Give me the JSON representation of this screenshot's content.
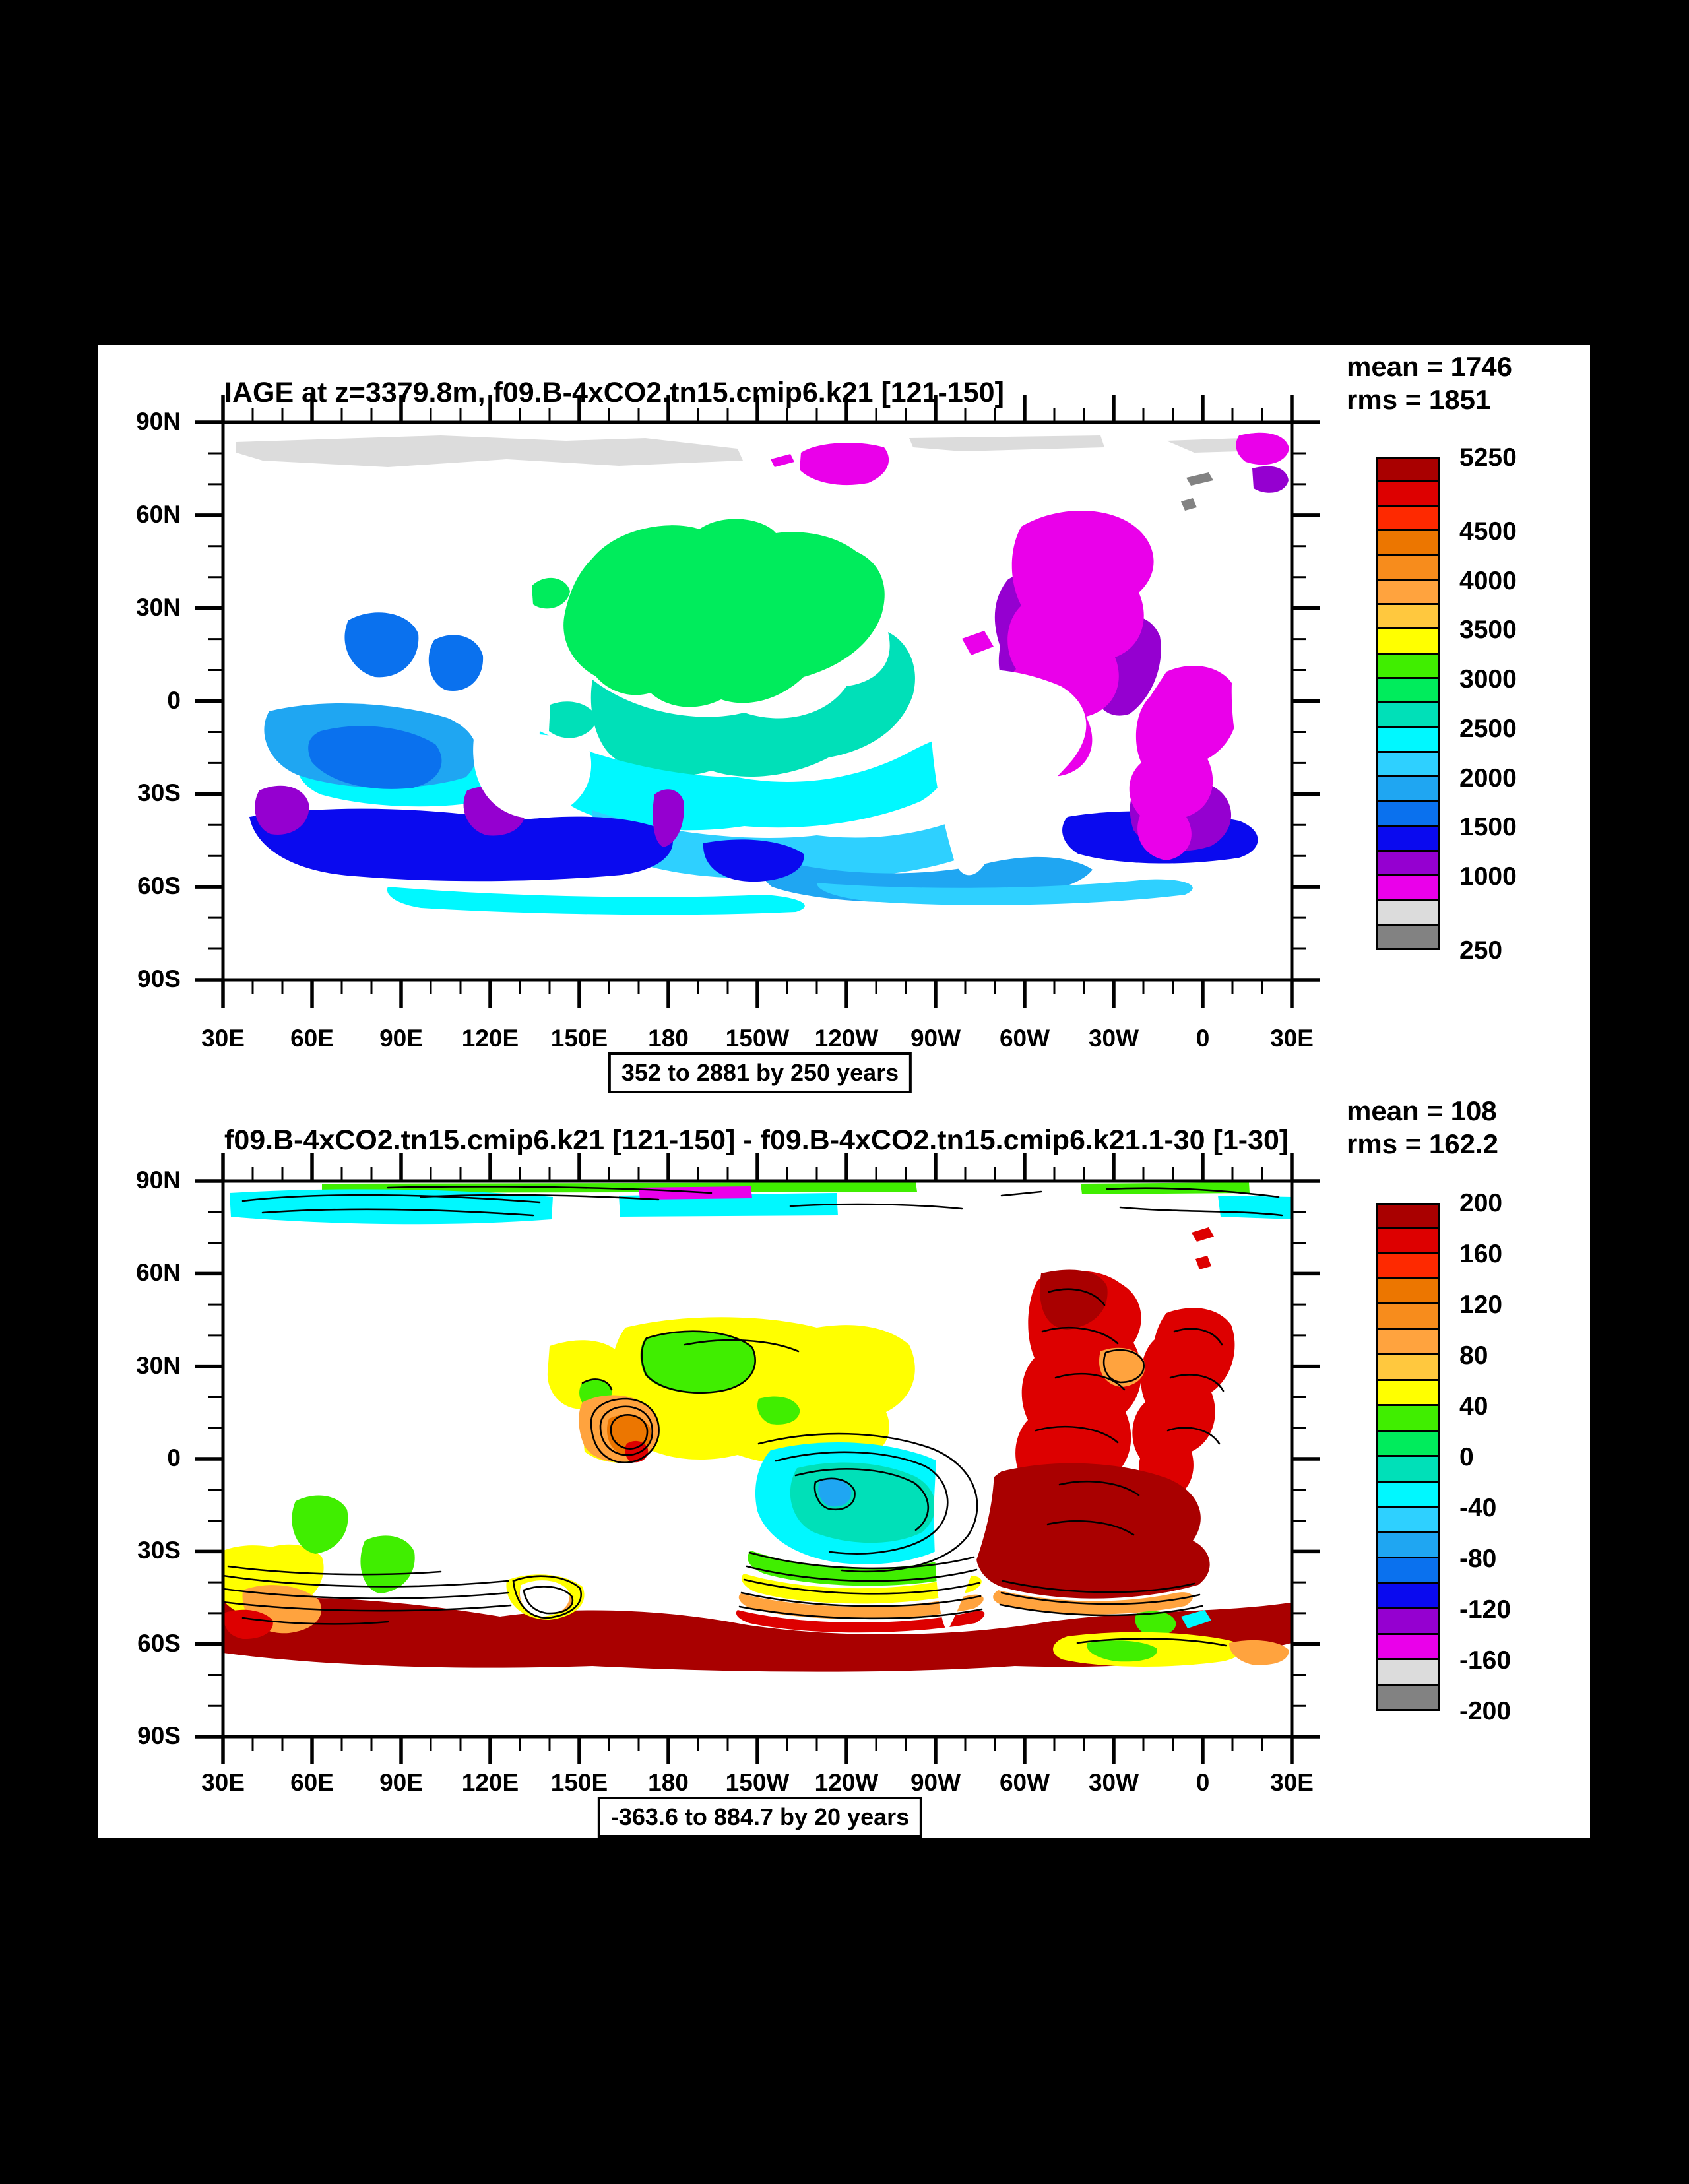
{
  "colors": {
    "background": "#000000",
    "page": "#ffffff",
    "frame": "#000000"
  },
  "palette": [
    "#a90000",
    "#dd0000",
    "#fe2900",
    "#ec7600",
    "#f78c1c",
    "#ffa33e",
    "#ffc83e",
    "#ffff00",
    "#40ee00",
    "#00ec5c",
    "#00e0b8",
    "#00f8ff",
    "#2ed0ff",
    "#1fa6f2",
    "#0a71ee",
    "#0a0aef",
    "#9500d0",
    "#ea00ea",
    "#dcdcdc",
    "#828282"
  ],
  "axes": {
    "lon_labels": [
      "30E",
      "60E",
      "90E",
      "120E",
      "150E",
      "180",
      "150W",
      "120W",
      "90W",
      "60W",
      "30W",
      "0",
      "30E"
    ],
    "lat_labels": [
      "90N",
      "60N",
      "30N",
      "0",
      "30S",
      "60S",
      "90S"
    ]
  },
  "panels": [
    {
      "title": "IAGE at z=3379.8m, f09.B-4xCO2.tn15.cmip6.k21 [121-150]",
      "stats": {
        "mean": "mean = 1746",
        "rms": "rms = 1851"
      },
      "caption": "352 to 2881 by 250 years",
      "colorbar": {
        "labels": [
          {
            "t": "5250",
            "p": 0
          },
          {
            "t": "4500",
            "p": 3
          },
          {
            "t": "4000",
            "p": 5
          },
          {
            "t": "3500",
            "p": 7
          },
          {
            "t": "3000",
            "p": 9
          },
          {
            "t": "2500",
            "p": 11
          },
          {
            "t": "2000",
            "p": 13
          },
          {
            "t": "1500",
            "p": 15
          },
          {
            "t": "1000",
            "p": 17
          },
          {
            "t": "250",
            "p": 20
          }
        ]
      }
    },
    {
      "title": "f09.B-4xCO2.tn15.cmip6.k21 [121-150] - f09.B-4xCO2.tn15.cmip6.k21.1-30 [1-30]",
      "stats": {
        "mean": "mean = 108",
        "rms": "rms = 162.2"
      },
      "caption": "-363.6 to 884.7 by 20 years",
      "colorbar": {
        "labels": [
          {
            "t": "200",
            "p": 0
          },
          {
            "t": "160",
            "p": 2
          },
          {
            "t": "120",
            "p": 4
          },
          {
            "t": "80",
            "p": 6
          },
          {
            "t": "40",
            "p": 8
          },
          {
            "t": "0",
            "p": 10
          },
          {
            "t": "-40",
            "p": 12
          },
          {
            "t": "-80",
            "p": 14
          },
          {
            "t": "-120",
            "p": 16
          },
          {
            "t": "-160",
            "p": 18
          },
          {
            "t": "-200",
            "p": 20
          }
        ]
      }
    }
  ],
  "chart_data": [
    {
      "type": "heatmap",
      "subtype": "filled-contour world map, cylindrical equidistant",
      "title": "IAGE at z=3379.8m, f09.B-4xCO2.tn15.cmip6.k21 [121-150]",
      "variable": "IAGE (ideal ocean age at 3379.8 m depth)",
      "units": "years",
      "xlabel": "longitude",
      "ylabel": "latitude",
      "x_ticks": [
        "30E",
        "60E",
        "90E",
        "120E",
        "150E",
        "180",
        "150W",
        "120W",
        "90W",
        "60W",
        "30W",
        "0",
        "30E"
      ],
      "y_ticks": [
        "90N",
        "60N",
        "30N",
        "0",
        "30S",
        "60S",
        "90S"
      ],
      "stats": {
        "mean": 1746,
        "rms": 1851
      },
      "field_range": {
        "min": 352,
        "max": 2881,
        "contour_interval": 250,
        "caption": "352 to 2881 by 250 years"
      },
      "levels": [
        250,
        500,
        750,
        1000,
        1250,
        1500,
        1750,
        2000,
        2250,
        2500,
        2750,
        3000,
        3250,
        3500,
        3750,
        4000,
        4250,
        4500,
        4750,
        5000,
        5250
      ],
      "legend_labels": [
        5250,
        4500,
        4000,
        3500,
        3000,
        2500,
        2000,
        1500,
        1000,
        250
      ],
      "legend_position": "right",
      "grid": false,
      "notes": "Oldest water (magenta/purple, 750-1250 yr colors inverted scale: magenta=1000-1250) in North/Tropical Atlantic; young gray water (250-750) in Arctic; green ~3000-3250 in NW Pacific; cyan ~2000-2500 across tropical Pacific; blue ~1500-1750 in Indian Ocean and Southern Ocean; continents white (no data)"
    },
    {
      "type": "heatmap",
      "subtype": "filled-contour difference map with black contour line overlay",
      "title": "f09.B-4xCO2.tn15.cmip6.k21 [121-150] - f09.B-4xCO2.tn15.cmip6.k21.1-30 [1-30]",
      "variable": "IAGE difference",
      "units": "years",
      "xlabel": "longitude",
      "ylabel": "latitude",
      "x_ticks": [
        "30E",
        "60E",
        "90E",
        "120E",
        "150E",
        "180",
        "150W",
        "120W",
        "90W",
        "60W",
        "30W",
        "0",
        "30E"
      ],
      "y_ticks": [
        "90N",
        "60N",
        "30N",
        "0",
        "30S",
        "60S",
        "90S"
      ],
      "stats": {
        "mean": 108,
        "rms": 162.2
      },
      "field_range": {
        "min": -363.6,
        "max": 884.7,
        "contour_interval": 20,
        "caption": "-363.6 to 884.7 by 20 years"
      },
      "levels": [
        -200,
        -180,
        -160,
        -140,
        -120,
        -100,
        -80,
        -60,
        -40,
        -20,
        0,
        20,
        40,
        60,
        80,
        100,
        120,
        140,
        160,
        180,
        200
      ],
      "legend_labels": [
        200,
        160,
        120,
        80,
        40,
        0,
        -40,
        -80,
        -120,
        -160,
        -200
      ],
      "legend_position": "right",
      "grid": false,
      "notes": "Large positive differences (dark red >200 yr) in Atlantic and Southern Ocean ~45-65S; yellow +40-80 over North Pacific; green 0-40; negative (cyan, -20 to -60) in SE tropical Pacific and Arctic strip; dense black contour packs along 40-50S and around bullseyes near 165E,5N and 35W,25N"
    }
  ]
}
